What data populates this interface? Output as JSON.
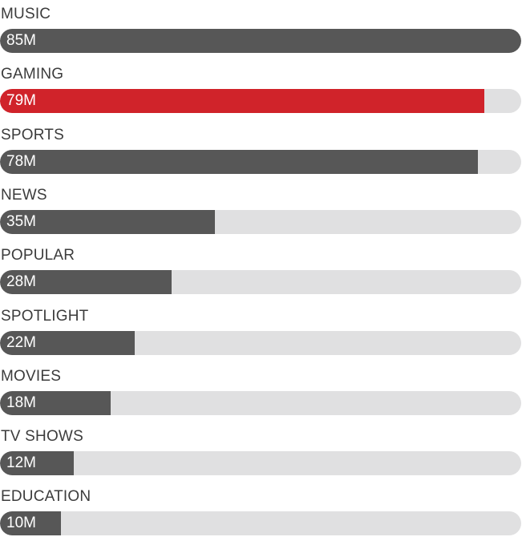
{
  "chart_data": {
    "type": "bar",
    "orientation": "horizontal",
    "categories": [
      "MUSIC",
      "GAMING",
      "SPORTS",
      "NEWS",
      "POPULAR",
      "SPOTLIGHT",
      "MOVIES",
      "TV SHOWS",
      "EDUCATION"
    ],
    "values": [
      85,
      79,
      78,
      35,
      28,
      22,
      18,
      12,
      10
    ],
    "value_labels": [
      "85M",
      "79M",
      "78M",
      "35M",
      "28M",
      "22M",
      "18M",
      "12M",
      "10M"
    ],
    "title": "",
    "xlabel": "",
    "ylabel": "",
    "xlim": [
      0,
      85
    ],
    "grid": false,
    "highlight_index": 1
  },
  "colors": {
    "bar": "#575757",
    "highlight": "#d0232a",
    "track": "#e0e0e1",
    "label_text": "#3c3c3c",
    "value_text": "#ffffff"
  }
}
